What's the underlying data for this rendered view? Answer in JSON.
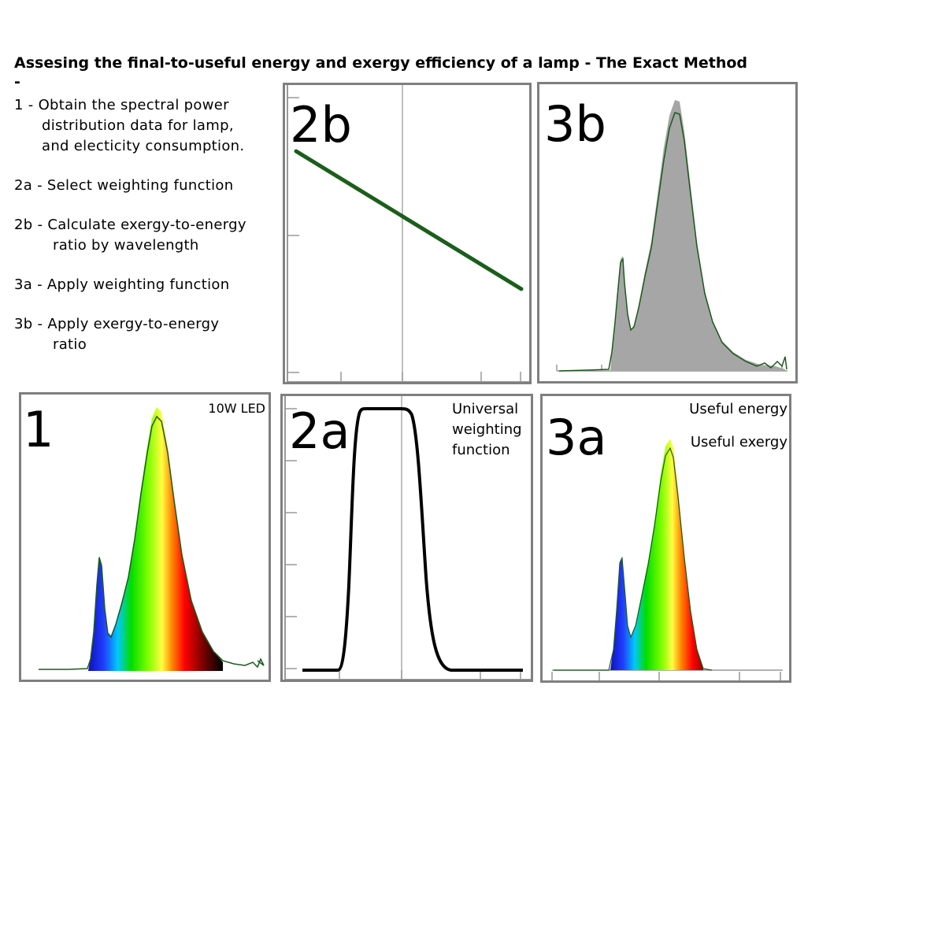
{
  "title": "Assesing the final-to-useful energy and exergy efficiency of a lamp - The Exact Method\n-",
  "steps": [
    {
      "num": "1 - ",
      "line1": "Obtain the spectral power",
      "cont": "distribution data for lamp,\nand electicity consumption."
    },
    {
      "num": "2a - ",
      "line1": "Select weighting function",
      "cont": ""
    },
    {
      "num": "2b - ",
      "line1": "Calculate exergy-to-energy",
      "cont": "ratio by wavelength"
    },
    {
      "num": "3a - ",
      "line1": "Apply weighting function",
      "cont": ""
    },
    {
      "num": "3b - ",
      "line1": "Apply exergy-to-energy",
      "cont": "ratio"
    }
  ],
  "panels": {
    "p1": {
      "label": "1",
      "note": "10W LED"
    },
    "p2a": {
      "label": "2a",
      "note": "Universal\nweighting\nfunction"
    },
    "p2b": {
      "label": "2b"
    },
    "p3a": {
      "label": "3a",
      "note1": "Useful energy",
      "note2": "Useful exergy"
    },
    "p3b": {
      "label": "3b"
    }
  },
  "colors": {
    "frame": "#7f7f7f",
    "spectrum_line": "#1e5a1e",
    "ratio_line": "#1a5e1a",
    "weighting_line": "#000000",
    "exergy_fill": "#a6a6a6",
    "axis": "#999999"
  }
}
